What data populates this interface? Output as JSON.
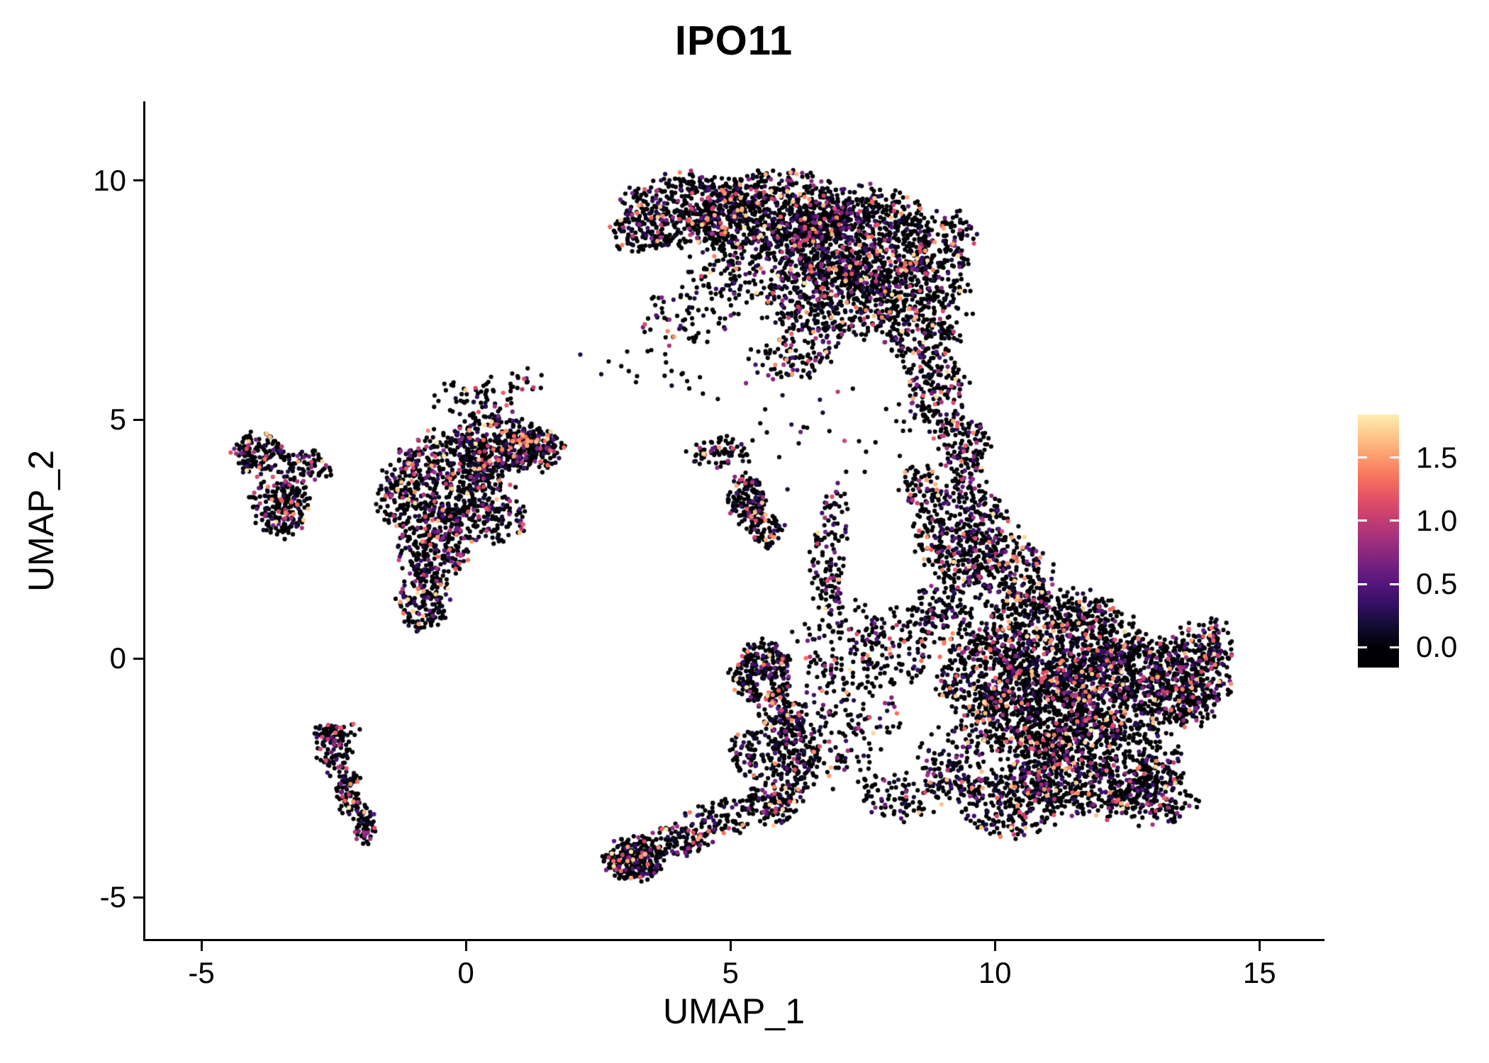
{
  "title": "IPO11",
  "axes": {
    "xlabel": "UMAP_1",
    "ylabel": "UMAP_2",
    "x_ticks": [
      {
        "v": -5,
        "label": "-5"
      },
      {
        "v": 0,
        "label": "0"
      },
      {
        "v": 5,
        "label": "5"
      },
      {
        "v": 10,
        "label": "10"
      },
      {
        "v": 15,
        "label": "15"
      }
    ],
    "y_ticks": [
      {
        "v": -5,
        "label": "-5"
      },
      {
        "v": 0,
        "label": "0"
      },
      {
        "v": 5,
        "label": "5"
      },
      {
        "v": 10,
        "label": "10"
      }
    ]
  },
  "colorbar": {
    "ticks": [
      {
        "v": 1.5,
        "label": "1.5"
      },
      {
        "v": 1.0,
        "label": "1.0"
      },
      {
        "v": 0.5,
        "label": "0.5"
      },
      {
        "v": 0.0,
        "label": "0.0"
      }
    ],
    "range": [
      -0.16,
      1.84
    ]
  },
  "colormap": {
    "name": "magma",
    "stops": [
      [
        0.0,
        "#000004"
      ],
      [
        0.1,
        "#140e36"
      ],
      [
        0.2,
        "#3b0f70"
      ],
      [
        0.3,
        "#641a80"
      ],
      [
        0.4,
        "#8c2981"
      ],
      [
        0.5,
        "#b73779"
      ],
      [
        0.6,
        "#de4968"
      ],
      [
        0.7,
        "#f7705c"
      ],
      [
        0.8,
        "#fe9f6d"
      ],
      [
        0.9,
        "#fecf92"
      ],
      [
        1.0,
        "#fcfdbf"
      ]
    ]
  },
  "chart_data": {
    "type": "scatter",
    "title": "IPO11",
    "xlabel": "UMAP_1",
    "ylabel": "UMAP_2",
    "xlim": [
      -6.06,
      16.19
    ],
    "ylim": [
      -5.87,
      11.63
    ],
    "grid": false,
    "legend_position": "right-colorbar",
    "color_scale": {
      "palette": "magma",
      "tick_values": [
        0.0,
        0.5,
        1.0,
        1.5
      ],
      "max": 1.8
    },
    "zero_expression_fraction": 0.74,
    "clusters": [
      {
        "cx": 4.2,
        "cy": 9.4,
        "rx": 1.2,
        "ry": 0.75,
        "n": 420
      },
      {
        "cx": 5.8,
        "cy": 9.3,
        "rx": 1.5,
        "ry": 0.85,
        "n": 750
      },
      {
        "cx": 7.5,
        "cy": 8.7,
        "rx": 1.5,
        "ry": 1.1,
        "n": 900
      },
      {
        "cx": 8.6,
        "cy": 7.4,
        "rx": 0.9,
        "ry": 1.2,
        "n": 420
      },
      {
        "cx": 6.9,
        "cy": 7.5,
        "rx": 1.2,
        "ry": 0.9,
        "n": 450
      },
      {
        "cx": 5.3,
        "cy": 8.2,
        "rx": 1.0,
        "ry": 0.8,
        "n": 180
      },
      {
        "cx": 3.3,
        "cy": 8.9,
        "rx": 0.6,
        "ry": 0.45,
        "n": 90
      },
      {
        "cx": 9.3,
        "cy": 8.8,
        "rx": 0.35,
        "ry": 0.55,
        "n": 70
      },
      {
        "cx": 4.3,
        "cy": 7.2,
        "rx": 0.9,
        "ry": 0.7,
        "n": 70
      },
      {
        "cx": 6.2,
        "cy": 6.3,
        "rx": 0.8,
        "ry": 0.5,
        "n": 90
      },
      {
        "cx": 8.9,
        "cy": 5.6,
        "rx": 0.55,
        "ry": 0.9,
        "n": 160
      },
      {
        "cx": 9.4,
        "cy": 4.4,
        "rx": 0.5,
        "ry": 0.7,
        "n": 130
      },
      {
        "cx": 8.6,
        "cy": 3.6,
        "rx": 0.4,
        "ry": 0.5,
        "n": 60
      },
      {
        "cx": 9.4,
        "cy": 2.6,
        "rx": 0.9,
        "ry": 1.1,
        "n": 420
      },
      {
        "cx": 10.3,
        "cy": 1.7,
        "rx": 0.8,
        "ry": 0.8,
        "n": 220
      },
      {
        "cx": 9.0,
        "cy": 1.0,
        "rx": 0.6,
        "ry": 0.6,
        "n": 120
      },
      {
        "cx": 11.2,
        "cy": 0.4,
        "rx": 1.5,
        "ry": 1.0,
        "n": 800
      },
      {
        "cx": 12.6,
        "cy": -0.6,
        "rx": 1.5,
        "ry": 1.0,
        "n": 800
      },
      {
        "cx": 10.7,
        "cy": -1.2,
        "rx": 1.2,
        "ry": 1.0,
        "n": 650
      },
      {
        "cx": 11.9,
        "cy": -2.3,
        "rx": 1.5,
        "ry": 1.0,
        "n": 750
      },
      {
        "cx": 13.7,
        "cy": -0.4,
        "rx": 0.7,
        "ry": 1.0,
        "n": 280
      },
      {
        "cx": 9.7,
        "cy": -0.3,
        "rx": 0.8,
        "ry": 0.9,
        "n": 260
      },
      {
        "cx": 10.3,
        "cy": -3.0,
        "rx": 1.0,
        "ry": 0.7,
        "n": 280
      },
      {
        "cx": 14.2,
        "cy": 0.3,
        "rx": 0.35,
        "ry": 0.55,
        "n": 80
      },
      {
        "cx": 13.0,
        "cy": -2.9,
        "rx": 0.8,
        "ry": 0.55,
        "n": 160
      },
      {
        "cx": 9.2,
        "cy": -2.2,
        "rx": 0.6,
        "ry": 0.8,
        "n": 140
      },
      {
        "cx": -3.5,
        "cy": 3.2,
        "rx": 0.55,
        "ry": 0.6,
        "n": 200
      },
      {
        "cx": -3.9,
        "cy": 4.3,
        "rx": 0.5,
        "ry": 0.45,
        "n": 140
      },
      {
        "cx": -3.0,
        "cy": 4.0,
        "rx": 0.45,
        "ry": 0.4,
        "n": 70
      },
      {
        "cx": -0.3,
        "cy": 3.8,
        "rx": 1.1,
        "ry": 0.9,
        "n": 480
      },
      {
        "cx": 0.6,
        "cy": 4.5,
        "rx": 0.9,
        "ry": 0.55,
        "n": 260
      },
      {
        "cx": 1.3,
        "cy": 4.4,
        "rx": 0.55,
        "ry": 0.45,
        "n": 160
      },
      {
        "cx": -0.6,
        "cy": 2.4,
        "rx": 0.65,
        "ry": 0.8,
        "n": 260
      },
      {
        "cx": -0.8,
        "cy": 1.2,
        "rx": 0.45,
        "ry": 0.65,
        "n": 160
      },
      {
        "cx": 0.2,
        "cy": 5.4,
        "rx": 0.8,
        "ry": 0.5,
        "n": 70
      },
      {
        "cx": 0.4,
        "cy": 2.9,
        "rx": 0.8,
        "ry": 0.5,
        "n": 130
      },
      {
        "cx": -1.3,
        "cy": 3.3,
        "rx": 0.4,
        "ry": 0.5,
        "n": 90
      },
      {
        "cx": 1.1,
        "cy": 5.8,
        "rx": 0.45,
        "ry": 0.25,
        "n": 16
      },
      {
        "cx": 4.8,
        "cy": 4.3,
        "rx": 0.55,
        "ry": 0.35,
        "n": 70
      },
      {
        "cx": 5.3,
        "cy": 3.3,
        "rx": 0.35,
        "ry": 0.55,
        "n": 150
      },
      {
        "cx": 5.7,
        "cy": 2.7,
        "rx": 0.3,
        "ry": 0.35,
        "n": 60
      },
      {
        "cx": -2.5,
        "cy": -1.9,
        "rx": 0.3,
        "ry": 0.5,
        "n": 90
      },
      {
        "cx": -2.2,
        "cy": -2.8,
        "rx": 0.25,
        "ry": 0.5,
        "n": 80
      },
      {
        "cx": -1.9,
        "cy": -3.5,
        "rx": 0.2,
        "ry": 0.4,
        "n": 60
      },
      {
        "cx": -2.5,
        "cy": -1.5,
        "rx": 0.45,
        "ry": 0.18,
        "n": 40
      },
      {
        "cx": 3.2,
        "cy": -4.2,
        "rx": 0.55,
        "ry": 0.45,
        "n": 260
      },
      {
        "cx": 4.0,
        "cy": -3.8,
        "rx": 0.6,
        "ry": 0.35,
        "n": 110
      },
      {
        "cx": 4.8,
        "cy": -3.3,
        "rx": 0.6,
        "ry": 0.45,
        "n": 80
      },
      {
        "cx": 5.6,
        "cy": -0.3,
        "rx": 0.55,
        "ry": 0.65,
        "n": 260
      },
      {
        "cx": 6.0,
        "cy": -1.3,
        "rx": 0.45,
        "ry": 0.6,
        "n": 130
      },
      {
        "cx": 6.2,
        "cy": -2.2,
        "rx": 0.5,
        "ry": 0.7,
        "n": 170
      },
      {
        "cx": 5.8,
        "cy": -3.0,
        "rx": 0.55,
        "ry": 0.45,
        "n": 120
      },
      {
        "cx": 5.4,
        "cy": -2.0,
        "rx": 0.4,
        "ry": 0.5,
        "n": 70
      },
      {
        "cx": 7.3,
        "cy": -1.3,
        "rx": 1.0,
        "ry": 1.4,
        "n": 170
      },
      {
        "cx": 7.1,
        "cy": 0.4,
        "rx": 0.8,
        "ry": 0.9,
        "n": 110
      },
      {
        "cx": 6.8,
        "cy": 1.8,
        "rx": 0.35,
        "ry": 1.0,
        "n": 90
      },
      {
        "cx": 8.3,
        "cy": -2.9,
        "rx": 0.8,
        "ry": 0.5,
        "n": 90
      },
      {
        "cx": 8.2,
        "cy": 0.3,
        "rx": 0.6,
        "ry": 0.8,
        "n": 90
      },
      {
        "cx": 7.0,
        "cy": 3.0,
        "rx": 0.3,
        "ry": 0.6,
        "n": 40
      },
      {
        "cx": 6.5,
        "cy": 4.8,
        "rx": 2.2,
        "ry": 1.3,
        "n": 40
      },
      {
        "cx": 3.5,
        "cy": 6.3,
        "rx": 1.2,
        "ry": 0.9,
        "n": 25
      },
      {
        "cx": 1.05,
        "cy": 4.55,
        "rx": 0.2,
        "ry": 0.13,
        "n": 14,
        "hot": 1.0,
        "hot_frac": 0.8
      },
      {
        "cx": -3.55,
        "cy": 3.1,
        "rx": 0.3,
        "ry": 0.3,
        "n": 12,
        "hot": 0.9,
        "hot_frac": 0.6
      }
    ]
  }
}
